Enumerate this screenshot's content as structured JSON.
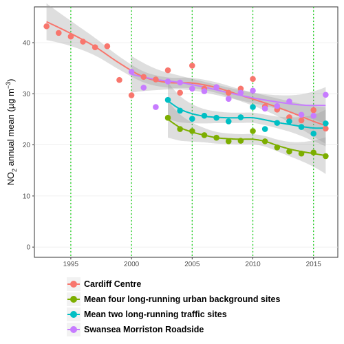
{
  "chart_data": {
    "type": "scatter",
    "title": "",
    "xlabel": "",
    "ylabel": "NO2 annual mean (µg m−3)",
    "ylabel_parts": {
      "base": "NO",
      "sub": "2",
      "mid": " annual mean (µg m",
      "sup": "−3",
      "end": ")"
    },
    "xlim": [
      1992,
      2017
    ],
    "ylim": [
      -2,
      47
    ],
    "x_ticks": [
      1995,
      2000,
      2005,
      2010,
      2015
    ],
    "y_ticks": [
      0,
      10,
      20,
      30,
      40
    ],
    "vlines": [
      1995,
      2000,
      2005,
      2010,
      2015
    ],
    "grid": true,
    "smoothed_trend": true,
    "legend_position": "bottom",
    "colors": {
      "vline": "#1fcf1f",
      "band": "#999999"
    },
    "series": [
      {
        "name": "Cardiff Centre",
        "color": "#f8766d",
        "x": [
          1993,
          1994,
          1995,
          1996,
          1997,
          1998,
          1999,
          2000,
          2001,
          2002,
          2003,
          2004,
          2005,
          2006,
          2007,
          2008,
          2009,
          2010,
          2011,
          2012,
          2013,
          2014,
          2015,
          2016
        ],
        "y": [
          43.2,
          41.9,
          41.2,
          40.2,
          39.1,
          39.3,
          32.7,
          29.7,
          33.3,
          32.8,
          34.6,
          30.2,
          35.5,
          31.0,
          31.3,
          30.2,
          31.0,
          32.9,
          27.5,
          26.9,
          25.4,
          24.8,
          26.8,
          23.2
        ],
        "trend": [
          [
            1993,
            44.1
          ],
          [
            1995,
            41.8
          ],
          [
            1997,
            39.2
          ],
          [
            1999,
            36.0
          ],
          [
            2001,
            33.3
          ],
          [
            2003,
            32.2
          ],
          [
            2005,
            32.1
          ],
          [
            2007,
            31.2
          ],
          [
            2009,
            29.7
          ],
          [
            2011,
            28.2
          ],
          [
            2013,
            26.5
          ],
          [
            2015,
            24.6
          ],
          [
            2016,
            23.8
          ]
        ]
      },
      {
        "name": "Mean four long-running urban background sites",
        "color": "#7cae00",
        "x": [
          2003,
          2004,
          2005,
          2006,
          2007,
          2008,
          2009,
          2010,
          2011,
          2012,
          2013,
          2014,
          2015,
          2016
        ],
        "y": [
          25.3,
          23.1,
          22.7,
          21.9,
          21.4,
          20.7,
          20.8,
          22.7,
          20.7,
          19.5,
          18.7,
          18.3,
          18.5,
          17.8
        ],
        "trend": [
          [
            2003,
            25.0
          ],
          [
            2004,
            23.4
          ],
          [
            2005,
            22.5
          ],
          [
            2006,
            21.9
          ],
          [
            2007,
            21.4
          ],
          [
            2008,
            21.2
          ],
          [
            2009,
            21.1
          ],
          [
            2010,
            21.1
          ],
          [
            2011,
            20.7
          ],
          [
            2012,
            19.9
          ],
          [
            2013,
            19.2
          ],
          [
            2014,
            18.7
          ],
          [
            2015,
            18.3
          ],
          [
            2016,
            17.9
          ]
        ]
      },
      {
        "name": "Mean two long-running traffic sites",
        "color": "#00bfc4",
        "x": [
          2003,
          2004,
          2005,
          2006,
          2007,
          2008,
          2009,
          2010,
          2011,
          2012,
          2013,
          2014,
          2015,
          2016
        ],
        "y": [
          28.8,
          26.7,
          25.1,
          25.7,
          25.3,
          24.6,
          25.4,
          27.4,
          23.1,
          24.3,
          24.6,
          23.5,
          22.2,
          24.2
        ],
        "trend": [
          [
            2003,
            28.6
          ],
          [
            2004,
            27.0
          ],
          [
            2005,
            26.1
          ],
          [
            2006,
            25.6
          ],
          [
            2007,
            25.4
          ],
          [
            2008,
            25.3
          ],
          [
            2009,
            25.3
          ],
          [
            2010,
            25.3
          ],
          [
            2011,
            24.9
          ],
          [
            2012,
            24.4
          ],
          [
            2013,
            24.0
          ],
          [
            2014,
            23.6
          ],
          [
            2015,
            23.3
          ],
          [
            2016,
            23.3
          ]
        ]
      },
      {
        "name": "Swansea Morriston Roadside",
        "color": "#c77cff",
        "x": [
          2000,
          2001,
          2002,
          2003,
          2004,
          2005,
          2006,
          2007,
          2008,
          2009,
          2010,
          2011,
          2012,
          2013,
          2014,
          2015,
          2016
        ],
        "y": [
          34.3,
          31.2,
          27.4,
          32.4,
          32.2,
          31.0,
          30.5,
          31.3,
          29.0,
          30.2,
          30.6,
          27.1,
          27.6,
          28.5,
          25.9,
          25.7,
          29.8
        ],
        "trend": [
          [
            2000,
            33.8
          ],
          [
            2002,
            32.8
          ],
          [
            2004,
            32.2
          ],
          [
            2006,
            31.3
          ],
          [
            2008,
            30.2
          ],
          [
            2010,
            29.2
          ],
          [
            2012,
            28.4
          ],
          [
            2014,
            27.8
          ],
          [
            2016,
            27.7
          ]
        ]
      }
    ]
  }
}
